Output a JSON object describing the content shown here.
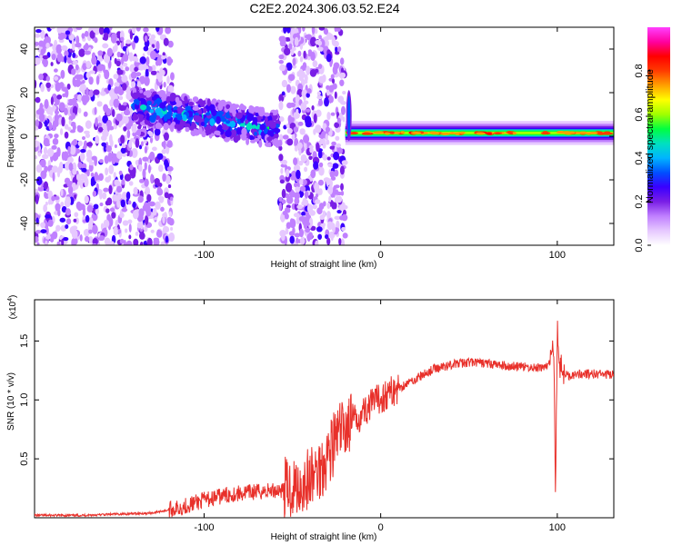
{
  "title": "C2E2.2024.306.03.52.E24",
  "chart_data": [
    {
      "type": "heatmap",
      "xlabel": "Height of straight line (km)",
      "ylabel": "Frequency (Hz)",
      "xlim": [
        -196,
        132
      ],
      "ylim": [
        -50,
        50
      ],
      "xticks": [
        -100,
        0,
        100
      ],
      "yticks": [
        -40,
        -20,
        0,
        20,
        40
      ],
      "colorbar": {
        "label": "Normalized spectral amplitude",
        "range": [
          0,
          1
        ],
        "ticks": [
          0.0,
          0.2,
          0.4,
          0.6,
          0.8
        ],
        "tick_labels": [
          "0.0",
          "0.2",
          "0.4",
          "0.6",
          "0.8"
        ],
        "colors": [
          "#ffffff",
          "#e6c8ff",
          "#c080ff",
          "#7a1fe6",
          "#3a00ff",
          "#0050ff",
          "#00b4ff",
          "#00e0c0",
          "#00ff40",
          "#a0ff00",
          "#ffff00",
          "#ffa000",
          "#ff3c00",
          "#ff0000",
          "#ff00a0",
          "#ff40ff"
        ]
      },
      "regions": [
        {
          "x_range": [
            -196,
            -118
          ],
          "freq_range": [
            -50,
            50
          ],
          "amplitude": 0.15
        },
        {
          "x_range": [
            -140,
            -58
          ],
          "center_freq_start": 14,
          "center_freq_end": 3,
          "amplitude": 0.45
        },
        {
          "x_range": [
            -57,
            -20
          ],
          "freq_range": [
            -50,
            50
          ],
          "amplitude": 0.15
        },
        {
          "x_range": [
            -20,
            132
          ],
          "center_freq": 1.5,
          "amplitude": 0.9
        }
      ]
    },
    {
      "type": "line",
      "xlabel": "Height of straight line (km)",
      "ylabel": "SNR (10 * v/v)",
      "y_multiplier": "(x10^4)",
      "y_multiplier_base": "(x10",
      "y_multiplier_exp": "4",
      "y_multiplier_close": ")",
      "xlim": [
        -196,
        132
      ],
      "ylim": [
        0,
        1.85
      ],
      "xticks": [
        -100,
        0,
        100
      ],
      "yticks": [
        0.5,
        1.0,
        1.5
      ],
      "ytick_labels": [
        "0.5",
        "1.0",
        "1.5"
      ],
      "series": [
        {
          "color": "#e8302a",
          "x": [
            -196,
            -170,
            -150,
            -130,
            -115,
            -100,
            -85,
            -70,
            -55,
            -45,
            -38,
            -33,
            -28,
            -24,
            -20,
            -15,
            -10,
            -5,
            0,
            10,
            20,
            30,
            40,
            50,
            60,
            70,
            80,
            90,
            96,
            98,
            99,
            100,
            101,
            103,
            106,
            110,
            120,
            132
          ],
          "y": [
            0.02,
            0.02,
            0.03,
            0.04,
            0.08,
            0.15,
            0.2,
            0.22,
            0.24,
            0.28,
            0.35,
            0.45,
            0.6,
            0.7,
            0.78,
            0.82,
            0.9,
            0.96,
            1.02,
            1.1,
            1.18,
            1.26,
            1.3,
            1.32,
            1.31,
            1.29,
            1.28,
            1.27,
            1.3,
            1.5,
            0.15,
            1.7,
            1.3,
            1.25,
            1.2,
            1.22,
            1.22,
            1.21
          ]
        }
      ]
    }
  ]
}
